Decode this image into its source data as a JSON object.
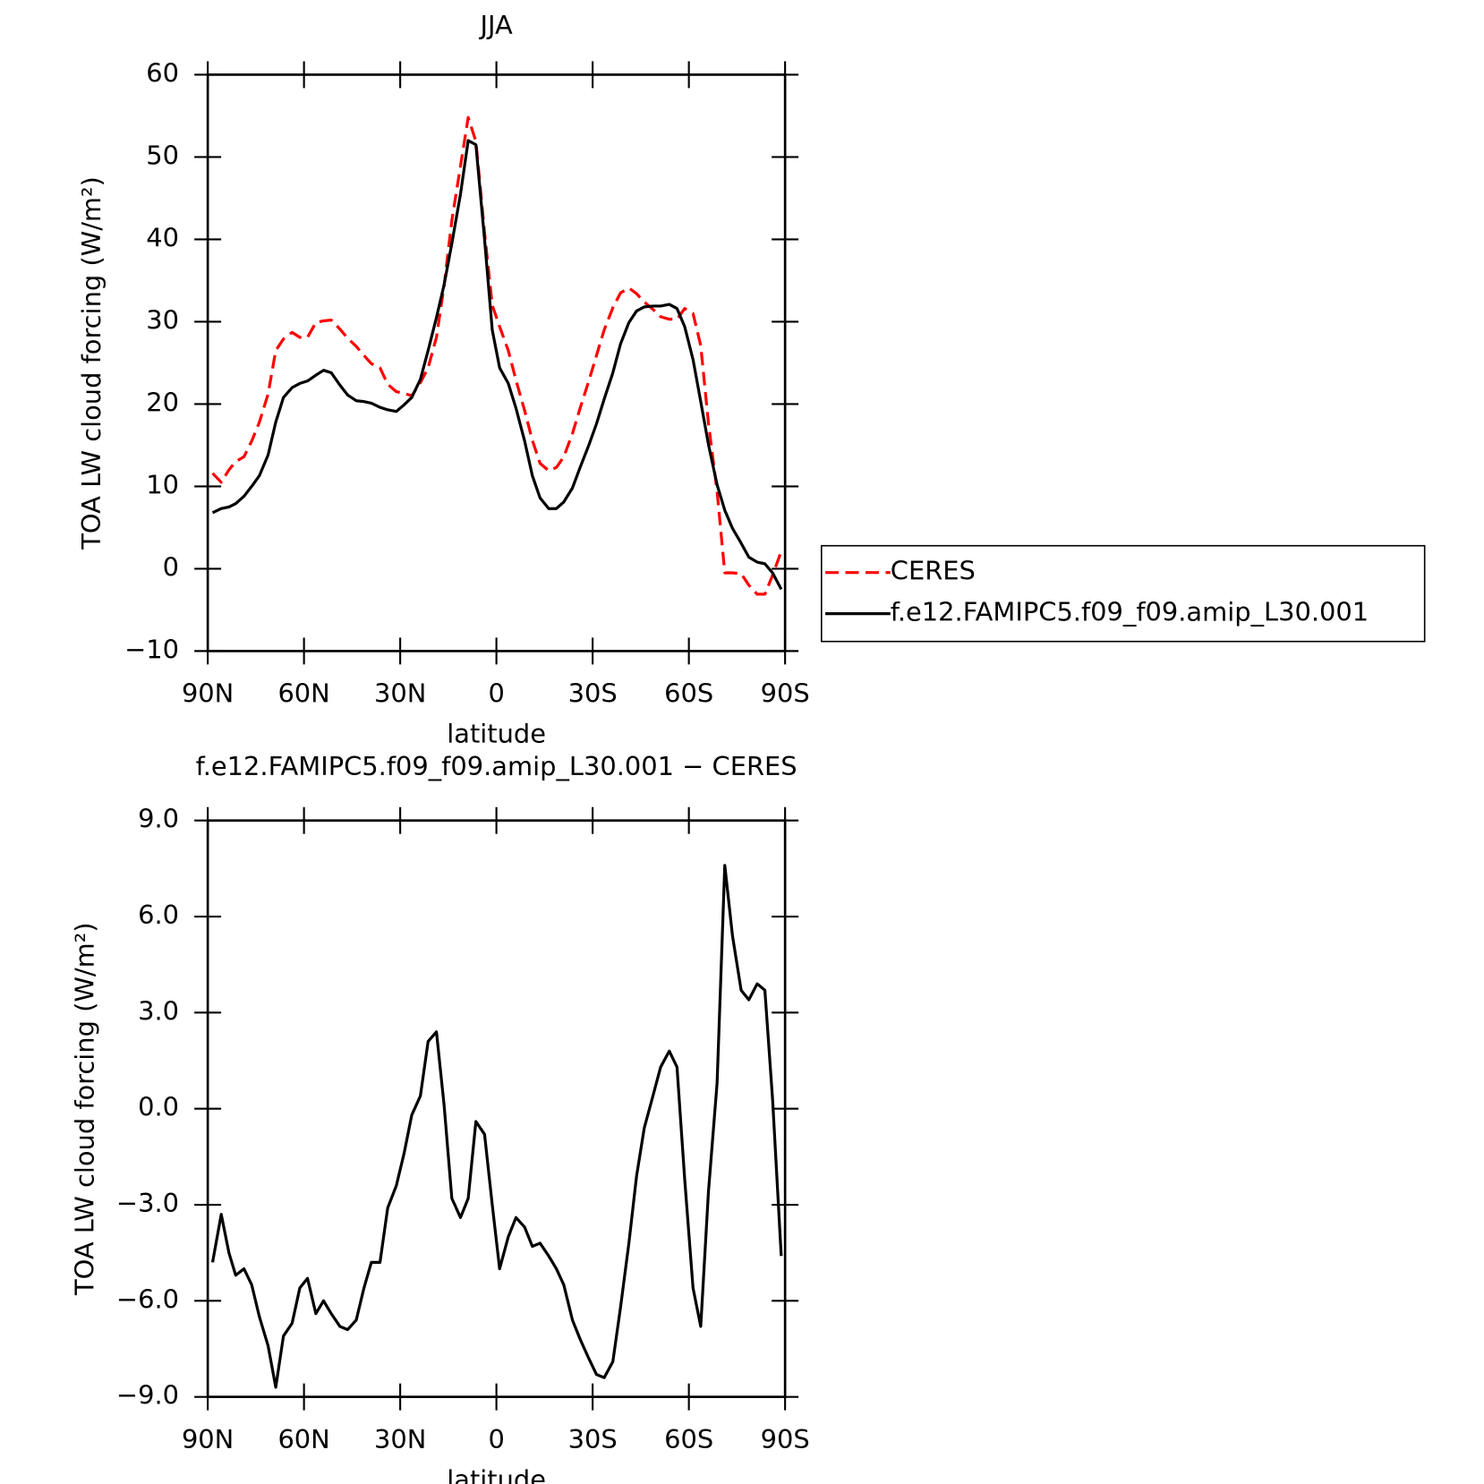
{
  "chart_data": [
    {
      "type": "line",
      "title": "JJA",
      "x_label": "latitude",
      "y_label": "TOA LW cloud forcing (W/m²)",
      "x": [
        88.5,
        85.8,
        83.4,
        81.3,
        78.7,
        76.3,
        73.9,
        71.2,
        68.8,
        66.4,
        63.7,
        61.3,
        58.9,
        56.3,
        53.9,
        51.5,
        48.8,
        46.4,
        43.7,
        41.3,
        39.0,
        36.3,
        33.9,
        31.2,
        28.8,
        26.4,
        23.7,
        21.3,
        18.7,
        16.3,
        13.9,
        11.2,
        8.8,
        6.4,
        3.7,
        1.3,
        -1.0,
        -3.7,
        -6.1,
        -8.8,
        -11.2,
        -13.6,
        -16.3,
        -18.7,
        -21.0,
        -23.7,
        -26.1,
        -28.8,
        -31.2,
        -33.6,
        -36.3,
        -38.7,
        -41.3,
        -43.7,
        -46.1,
        -48.8,
        -51.2,
        -53.9,
        -56.3,
        -58.7,
        -61.3,
        -63.7,
        -66.1,
        -68.8,
        -71.2,
        -73.6,
        -76.3,
        -78.7,
        -81.3,
        -83.7,
        -86.1,
        -88.8
      ],
      "series": [
        {
          "name": "CERES",
          "color": "#ff0000",
          "line_style": "dashed",
          "values": [
            11.6,
            10.5,
            12.0,
            13.0,
            13.6,
            15.5,
            17.8,
            21.2,
            26.5,
            27.9,
            28.7,
            28.1,
            28.1,
            29.9,
            30.1,
            30.2,
            29.1,
            28.0,
            27.0,
            25.9,
            24.9,
            24.4,
            22.4,
            21.5,
            21.3,
            21.0,
            22.6,
            24.4,
            28.1,
            34.4,
            42.3,
            48.9,
            54.8,
            51.9,
            40.8,
            32.0,
            29.4,
            26.5,
            22.9,
            19.2,
            15.6,
            12.8,
            11.9,
            12.3,
            13.6,
            16.4,
            19.5,
            22.8,
            25.9,
            29.0,
            31.7,
            33.5,
            34.1,
            33.4,
            32.4,
            31.5,
            30.6,
            30.3,
            30.3,
            31.6,
            31.0,
            27.1,
            17.7,
            9.4,
            -0.5,
            -0.5,
            -0.6,
            -2.0,
            -3.1,
            -3.1,
            -0.8,
            2.1
          ]
        },
        {
          "name": "f.e12.FAMIPC5.f09_f09.amip_L30.001",
          "color": "#000000",
          "line_style": "solid",
          "values": [
            6.8,
            7.3,
            7.5,
            7.9,
            8.8,
            10.0,
            11.3,
            13.8,
            17.8,
            20.8,
            22.0,
            22.5,
            22.8,
            23.5,
            24.1,
            23.8,
            22.3,
            21.1,
            20.4,
            20.3,
            20.1,
            19.6,
            19.3,
            19.1,
            19.9,
            20.8,
            23.0,
            26.5,
            30.5,
            34.5,
            39.5,
            45.5,
            52.0,
            51.5,
            40.0,
            29.0,
            24.4,
            22.5,
            19.5,
            15.5,
            11.3,
            8.6,
            7.3,
            7.3,
            8.1,
            9.8,
            12.3,
            15.0,
            17.6,
            20.6,
            23.8,
            27.3,
            29.9,
            31.3,
            31.8,
            31.9,
            31.9,
            32.1,
            31.6,
            29.4,
            25.4,
            20.3,
            15.1,
            10.2,
            7.1,
            4.9,
            3.1,
            1.4,
            0.8,
            0.6,
            -0.5,
            -2.5
          ]
        }
      ],
      "xlim": [
        90,
        -90
      ],
      "xticks": [
        {
          "value": 90,
          "label": "90N"
        },
        {
          "value": 60,
          "label": "60N"
        },
        {
          "value": 30,
          "label": "30N"
        },
        0,
        {
          "value": -30,
          "label": "30S"
        },
        {
          "value": -60,
          "label": "60S"
        },
        {
          "value": -90,
          "label": "90S"
        }
      ],
      "ylim": [
        -10,
        60
      ],
      "yticks": [
        {
          "value": -10,
          "label": "−10"
        },
        0,
        10,
        20,
        30,
        40,
        50,
        60
      ],
      "legend": "right"
    },
    {
      "type": "line",
      "title": "f.e12.FAMIPC5.f09_f09.amip_L30.001 − CERES",
      "x_label": "latitude",
      "y_label": "TOA LW cloud forcing (W/m²)",
      "x": [
        88.5,
        85.8,
        83.4,
        81.3,
        78.7,
        76.3,
        73.9,
        71.2,
        68.8,
        66.4,
        63.7,
        61.3,
        58.9,
        56.3,
        53.9,
        51.5,
        48.8,
        46.4,
        43.7,
        41.3,
        39.0,
        36.3,
        33.9,
        31.2,
        28.8,
        26.4,
        23.7,
        21.3,
        18.7,
        16.3,
        13.9,
        11.2,
        8.8,
        6.4,
        3.7,
        1.3,
        -1.0,
        -3.7,
        -6.1,
        -8.8,
        -11.2,
        -13.6,
        -16.3,
        -18.7,
        -21.0,
        -23.7,
        -26.1,
        -28.8,
        -31.2,
        -33.6,
        -36.3,
        -38.7,
        -41.3,
        -43.7,
        -46.1,
        -48.8,
        -51.2,
        -53.9,
        -56.3,
        -58.7,
        -61.3,
        -63.7,
        -66.1,
        -68.8,
        -71.2,
        -73.6,
        -76.3,
        -78.7,
        -81.3,
        -83.7,
        -86.1,
        -88.8
      ],
      "color": "#000000",
      "values": [
        -4.8,
        -3.3,
        -4.5,
        -5.2,
        -5.0,
        -5.5,
        -6.5,
        -7.4,
        -8.7,
        -7.1,
        -6.7,
        -5.6,
        -5.3,
        -6.4,
        -6.0,
        -6.4,
        -6.8,
        -6.9,
        -6.6,
        -5.6,
        -4.8,
        -4.8,
        -3.1,
        -2.4,
        -1.4,
        -0.2,
        0.4,
        2.1,
        2.4,
        0.1,
        -2.8,
        -3.4,
        -2.8,
        -0.4,
        -0.8,
        -3.0,
        -5.0,
        -4.0,
        -3.4,
        -3.7,
        -4.3,
        -4.2,
        -4.6,
        -5.0,
        -5.5,
        -6.6,
        -7.2,
        -7.8,
        -8.3,
        -8.4,
        -7.9,
        -6.2,
        -4.2,
        -2.1,
        -0.6,
        0.4,
        1.3,
        1.8,
        1.3,
        -2.2,
        -5.6,
        -6.8,
        -2.6,
        0.8,
        7.6,
        5.4,
        3.7,
        3.4,
        3.9,
        3.7,
        0.3,
        -4.6
      ],
      "xlim": [
        90,
        -90
      ],
      "xticks": [
        {
          "value": 90,
          "label": "90N"
        },
        {
          "value": 60,
          "label": "60N"
        },
        {
          "value": 30,
          "label": "30N"
        },
        0,
        {
          "value": -30,
          "label": "30S"
        },
        {
          "value": -60,
          "label": "60S"
        },
        {
          "value": -90,
          "label": "90S"
        }
      ],
      "ylim": [
        -9,
        9
      ],
      "yticks": [
        {
          "value": -9,
          "label": "−9.0"
        },
        {
          "value": -6,
          "label": "−6.0"
        },
        {
          "value": -3,
          "label": "−3.0"
        },
        {
          "value": 0,
          "label": "0.0"
        },
        {
          "value": 3,
          "label": "3.0"
        },
        {
          "value": 6,
          "label": "6.0"
        },
        {
          "value": 9,
          "label": "9.0"
        }
      ]
    }
  ]
}
